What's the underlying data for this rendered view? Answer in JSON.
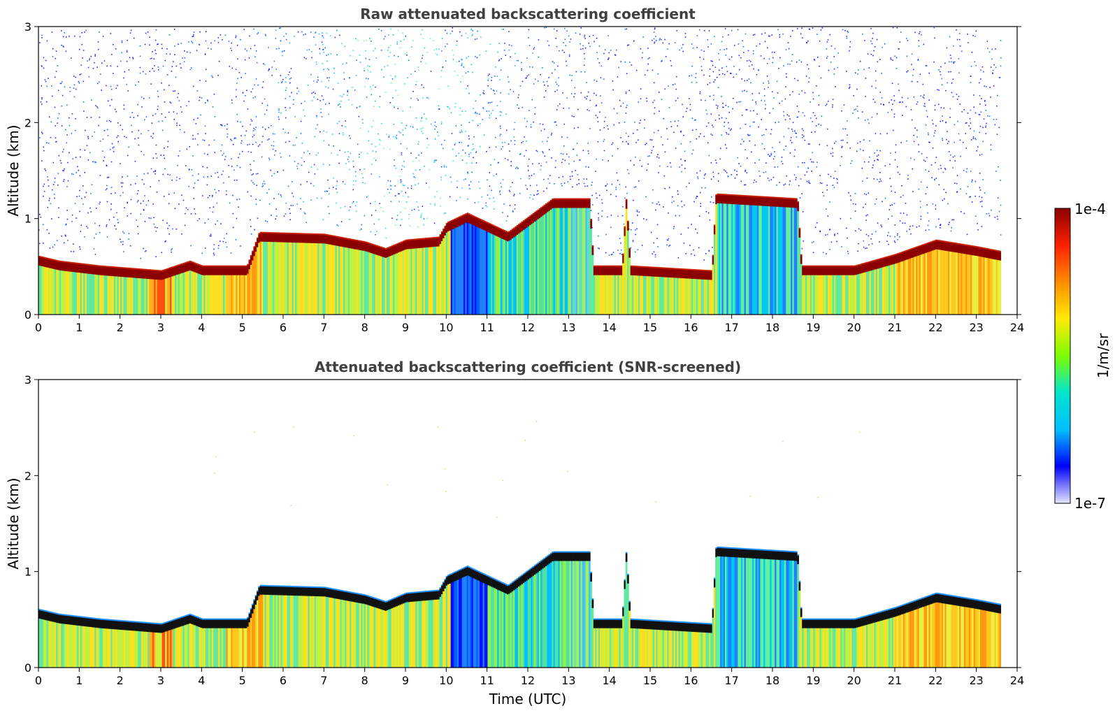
{
  "chart_data": [
    {
      "type": "heatmap",
      "title": "Raw attenuated backscattering coefficient",
      "xlabel": "",
      "ylabel": "Altitude (km)",
      "xlim": [
        0,
        24
      ],
      "ylim": [
        0,
        3
      ],
      "xticks": [
        "0",
        "1",
        "2",
        "3",
        "4",
        "5",
        "6",
        "7",
        "8",
        "9",
        "10",
        "11",
        "12",
        "13",
        "14",
        "15",
        "16",
        "17",
        "18",
        "19",
        "20",
        "21",
        "22",
        "23",
        "24"
      ],
      "yticks": [
        "0",
        "1",
        "2",
        "3"
      ],
      "data_end_hour": 23.6,
      "screened": false,
      "cloud_layer_top_km": [
        [
          0,
          0.6
        ],
        [
          0.5,
          0.55
        ],
        [
          1.5,
          0.5
        ],
        [
          3,
          0.45
        ],
        [
          3.7,
          0.55
        ],
        [
          4,
          0.5
        ],
        [
          5.1,
          0.5
        ],
        [
          5.4,
          0.85
        ],
        [
          7,
          0.83
        ],
        [
          8,
          0.75
        ],
        [
          8.5,
          0.68
        ],
        [
          9,
          0.77
        ],
        [
          9.8,
          0.8
        ],
        [
          10,
          0.95
        ],
        [
          10.5,
          1.05
        ],
        [
          11.5,
          0.85
        ],
        [
          12.6,
          1.2
        ],
        [
          13.5,
          1.2
        ],
        [
          13.6,
          0.5
        ],
        [
          14.3,
          0.5
        ],
        [
          14.4,
          1.22
        ],
        [
          14.5,
          0.5
        ],
        [
          16.5,
          0.45
        ],
        [
          16.6,
          1.25
        ],
        [
          18.6,
          1.2
        ],
        [
          18.7,
          0.5
        ],
        [
          20,
          0.5
        ],
        [
          21,
          0.62
        ],
        [
          22,
          0.77
        ],
        [
          23,
          0.7
        ],
        [
          23.6,
          0.65
        ]
      ]
    },
    {
      "type": "heatmap",
      "title": "Attenuated backscattering coefficient (SNR-screened)",
      "xlabel": "Time (UTC)",
      "ylabel": "Altitude (km)",
      "xlim": [
        0,
        24
      ],
      "ylim": [
        0,
        3
      ],
      "xticks": [
        "0",
        "1",
        "2",
        "3",
        "4",
        "5",
        "6",
        "7",
        "8",
        "9",
        "10",
        "11",
        "12",
        "13",
        "14",
        "15",
        "16",
        "17",
        "18",
        "19",
        "20",
        "21",
        "22",
        "23",
        "24"
      ],
      "yticks": [
        "0",
        "1",
        "2",
        "3"
      ],
      "data_end_hour": 23.6,
      "screened": true,
      "cloud_layer_top_km": [
        [
          0,
          0.6
        ],
        [
          0.5,
          0.55
        ],
        [
          1.5,
          0.5
        ],
        [
          3,
          0.45
        ],
        [
          3.7,
          0.55
        ],
        [
          4,
          0.5
        ],
        [
          5.1,
          0.5
        ],
        [
          5.4,
          0.85
        ],
        [
          7,
          0.83
        ],
        [
          8,
          0.75
        ],
        [
          8.5,
          0.68
        ],
        [
          9,
          0.77
        ],
        [
          9.8,
          0.8
        ],
        [
          10,
          0.95
        ],
        [
          10.5,
          1.05
        ],
        [
          11.5,
          0.85
        ],
        [
          12.6,
          1.2
        ],
        [
          13.5,
          1.2
        ],
        [
          13.6,
          0.5
        ],
        [
          14.3,
          0.5
        ],
        [
          14.4,
          1.22
        ],
        [
          14.5,
          0.5
        ],
        [
          16.5,
          0.45
        ],
        [
          16.6,
          1.25
        ],
        [
          18.6,
          1.2
        ],
        [
          18.7,
          0.5
        ],
        [
          20,
          0.5
        ],
        [
          21,
          0.62
        ],
        [
          22,
          0.77
        ],
        [
          23,
          0.7
        ],
        [
          23.6,
          0.65
        ]
      ]
    }
  ],
  "colorbar": {
    "label": "1/m/sr",
    "max_label": "1e-4",
    "min_label": "1e-7",
    "colors": [
      "#e6e6fa",
      "#0000ff",
      "#00bfff",
      "#00e5cc",
      "#7cfc00",
      "#ffeb00",
      "#ff8c00",
      "#ff2000",
      "#8b0000"
    ]
  }
}
